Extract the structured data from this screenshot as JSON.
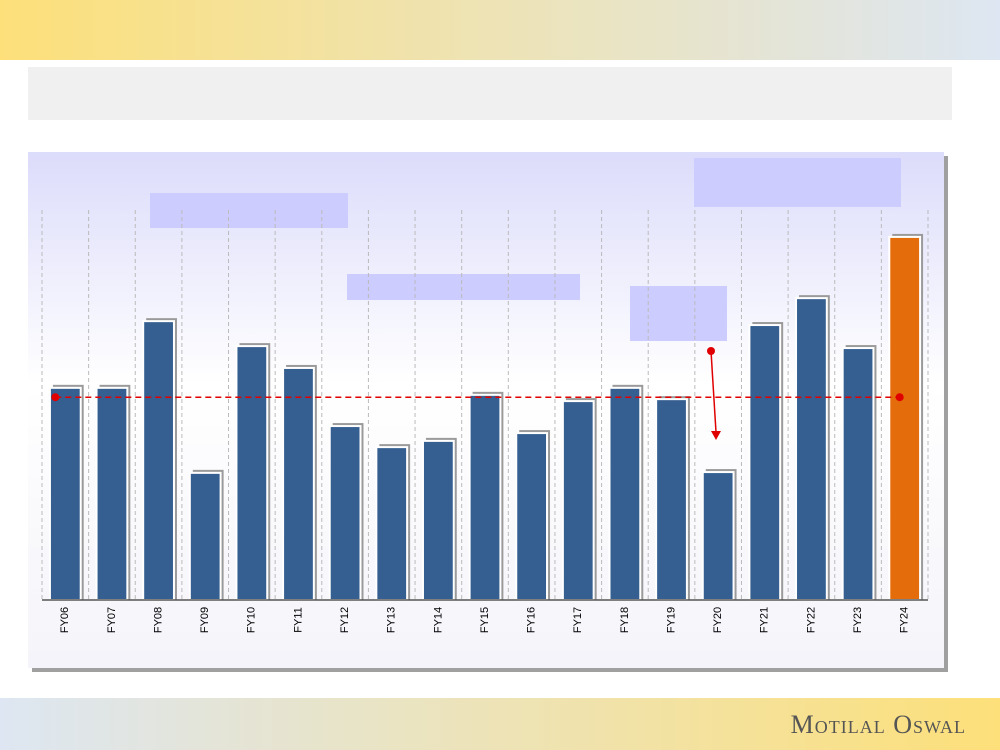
{
  "chart_data": {
    "type": "bar",
    "categories": [
      "FY06",
      "FY07",
      "FY08",
      "FY09",
      "FY10",
      "FY11",
      "FY12",
      "FY13",
      "FY14",
      "FY15",
      "FY16",
      "FY17",
      "FY18",
      "FY19",
      "FY20",
      "FY21",
      "FY22",
      "FY23",
      "FY24"
    ],
    "values": [
      54.4,
      54.4,
      71.5,
      32.6,
      65.1,
      59.5,
      44.6,
      39.2,
      40.8,
      52.6,
      42.8,
      51.0,
      54.4,
      51.5,
      32.8,
      70.5,
      77.4,
      64.6,
      93.1
    ],
    "colors": [
      "#355f91",
      "#355f91",
      "#355f91",
      "#355f91",
      "#355f91",
      "#355f91",
      "#355f91",
      "#355f91",
      "#355f91",
      "#355f91",
      "#355f91",
      "#355f91",
      "#355f91",
      "#355f91",
      "#355f91",
      "#355f91",
      "#355f91",
      "#355f91",
      "#e46c0a"
    ],
    "average_line": 52,
    "average_color": "#e00000",
    "ylim": [
      0,
      100
    ]
  },
  "brand": "Motilal Oswal"
}
